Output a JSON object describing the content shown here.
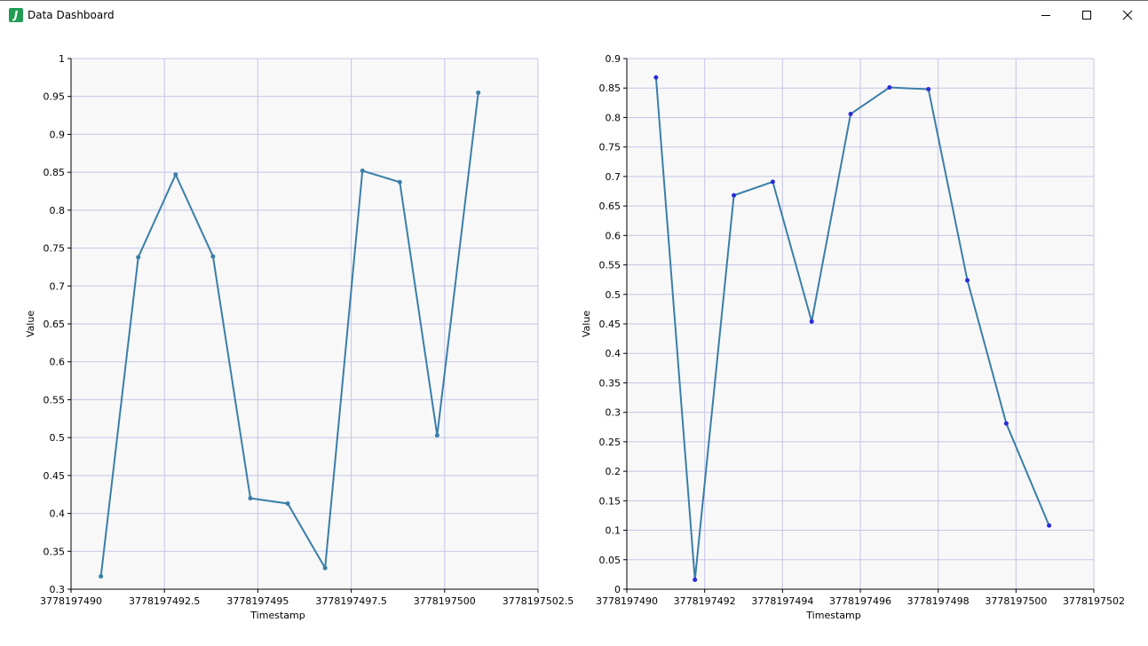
{
  "window": {
    "title": "Data Dashboard",
    "app_icon_letter": "J",
    "icons": {
      "app": "java-app-icon",
      "minimize": "minimize-icon",
      "maximize": "maximize-icon",
      "close": "close-icon"
    }
  },
  "colors": {
    "plot_background": "#f8f8f8",
    "grid": "#c5c5e6",
    "line": "#3a7ea8",
    "left_points": "#3a7ea8",
    "right_points": "#2b2bd9"
  },
  "chart_data": [
    {
      "type": "line",
      "xlabel": "Timestamp",
      "ylabel": "Value",
      "xlim": [
        3778197490,
        3778197502.5
      ],
      "ylim": [
        0.3,
        1
      ],
      "x_ticks": [
        3778197490,
        3778197492.5,
        3778197495,
        3778197497.5,
        3778197500,
        3778197502.5
      ],
      "x_tick_labels": [
        "3778197490",
        "3778197492.5",
        "3778197495",
        "3778197497.5",
        "3778197500",
        "3778197502.5"
      ],
      "y_ticks": [
        0.3,
        0.35,
        0.4,
        0.45,
        0.5,
        0.55,
        0.6,
        0.65,
        0.7,
        0.75,
        0.8,
        0.85,
        0.9,
        0.95,
        1
      ],
      "y_tick_labels": [
        "0.3",
        "0.35",
        "0.4",
        "0.45",
        "0.5",
        "0.55",
        "0.6",
        "0.65",
        "0.7",
        "0.75",
        "0.8",
        "0.85",
        "0.9",
        "0.95",
        "1"
      ],
      "grid": true,
      "x": [
        3778197490.8,
        3778197491.8,
        3778197492.8,
        3778197493.8,
        3778197494.8,
        3778197495.8,
        3778197496.8,
        3778197497.8,
        3778197498.8,
        3778197499.8,
        3778197500.9
      ],
      "y": [
        0.317,
        0.738,
        0.847,
        0.739,
        0.42,
        0.413,
        0.328,
        0.852,
        0.837,
        0.503,
        0.955
      ]
    },
    {
      "type": "line",
      "xlabel": "Timestamp",
      "ylabel": "Value",
      "xlim": [
        3778197490,
        3778197502
      ],
      "ylim": [
        0,
        0.9
      ],
      "x_ticks": [
        3778197490,
        3778197492,
        3778197494,
        3778197496,
        3778197498,
        3778197500,
        3778197502
      ],
      "x_tick_labels": [
        "3778197490",
        "3778197492",
        "3778197494",
        "3778197496",
        "3778197498",
        "3778197500",
        "3778197502"
      ],
      "y_ticks": [
        0,
        0.05,
        0.1,
        0.15,
        0.2,
        0.25,
        0.3,
        0.35,
        0.4,
        0.45,
        0.5,
        0.55,
        0.6,
        0.65,
        0.7,
        0.75,
        0.8,
        0.85,
        0.9
      ],
      "y_tick_labels": [
        "0",
        "0.05",
        "0.1",
        "0.15",
        "0.2",
        "0.25",
        "0.3",
        "0.35",
        "0.4",
        "0.45",
        "0.5",
        "0.55",
        "0.6",
        "0.65",
        "0.7",
        "0.75",
        "0.8",
        "0.85",
        "0.9"
      ],
      "grid": true,
      "x": [
        3778197490.75,
        3778197491.75,
        3778197492.75,
        3778197493.75,
        3778197494.75,
        3778197495.75,
        3778197496.75,
        3778197497.75,
        3778197498.75,
        3778197499.75,
        3778197500.85
      ],
      "y": [
        0.868,
        0.016,
        0.668,
        0.691,
        0.454,
        0.806,
        0.851,
        0.848,
        0.524,
        0.281,
        0.108
      ]
    }
  ]
}
